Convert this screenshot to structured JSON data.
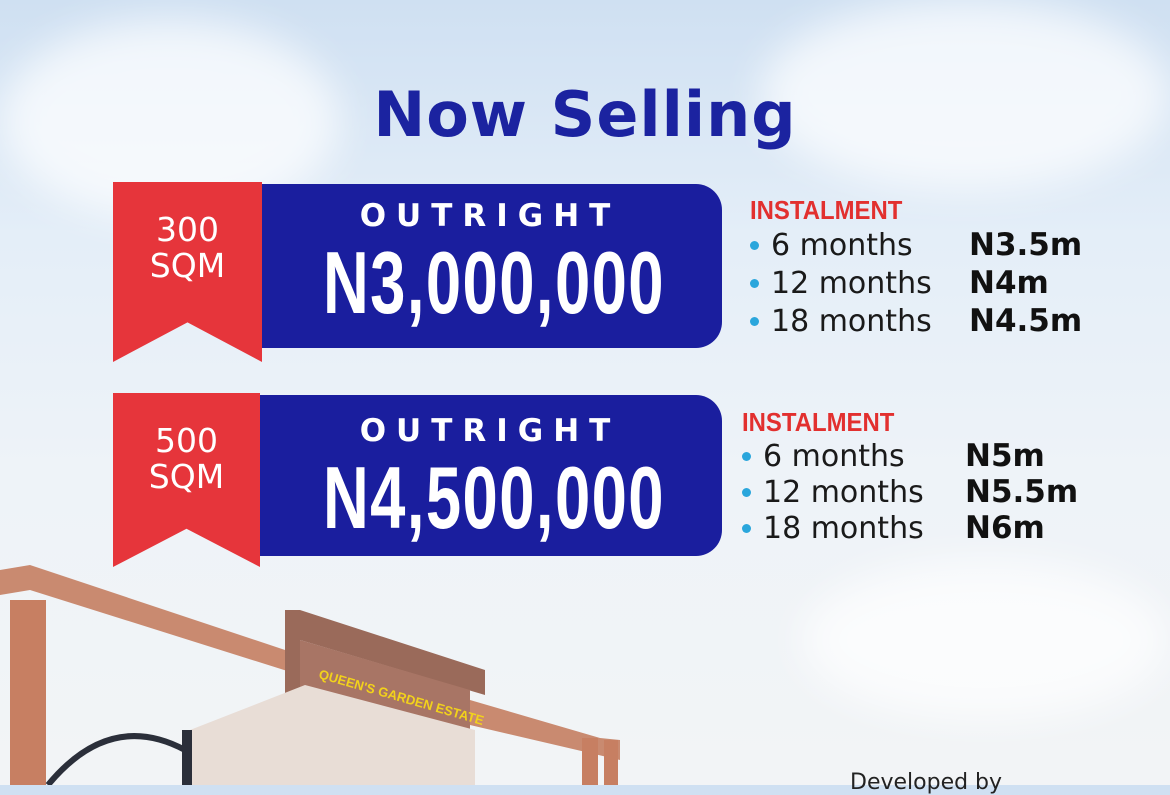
{
  "headline": "Now Selling",
  "offers": [
    {
      "size": "300",
      "unit": "SQM",
      "outright_label": "OUTRIGHT",
      "outright_price": "N3,000,000",
      "instalment_label": "INSTALMENT",
      "plans": [
        {
          "duration": "6 months",
          "price": "N3.5m"
        },
        {
          "duration": "12 months",
          "price": "N4m"
        },
        {
          "duration": "18 months",
          "price": "N4.5m"
        }
      ]
    },
    {
      "size": "500",
      "unit": "SQM",
      "outright_label": "OUTRIGHT",
      "outright_price": "N4,500,000",
      "instalment_label": "INSTALMENT",
      "plans": [
        {
          "duration": "6 months",
          "price": "N5m"
        },
        {
          "duration": "12 months",
          "price": "N5.5m"
        },
        {
          "duration": "18 months",
          "price": "N6m"
        }
      ]
    }
  ],
  "gate_sign": "QUEEN'S GARDEN ESTATE",
  "developer_label": "Developed by",
  "colors": {
    "headline": "#1b23a0",
    "ribbon": "#e6353b",
    "price_box": "#1a1e9e",
    "instalment": "#e2302f",
    "bullet": "#2aa6dc"
  }
}
